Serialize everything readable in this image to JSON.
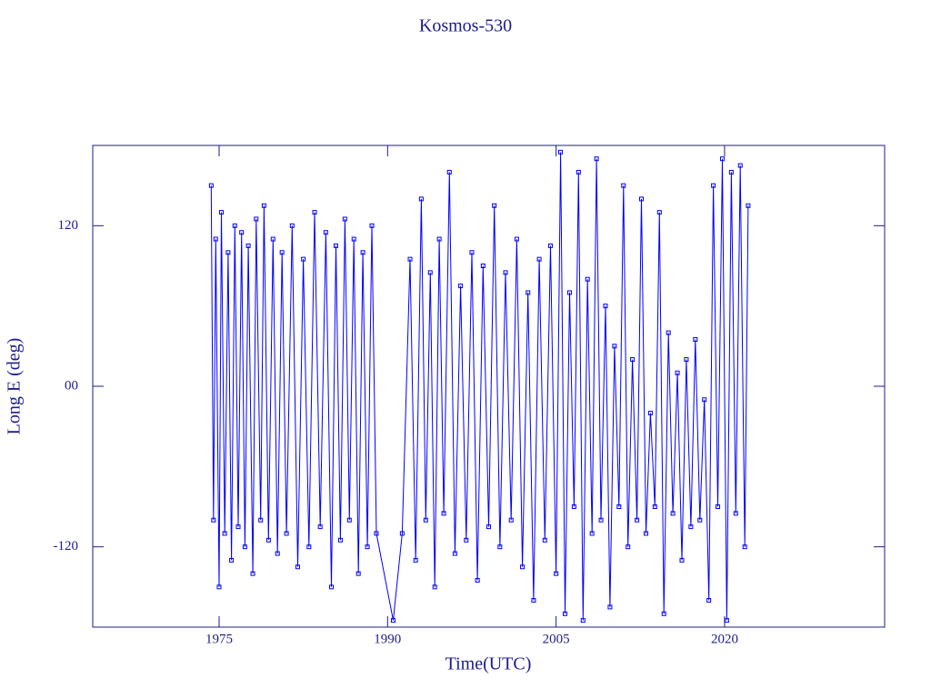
{
  "chart_data": {
    "type": "line",
    "title": "Kosmos-530",
    "x_label": "Time(UTC)",
    "y_label": "Long E (deg)",
    "xlim": [
      1963.75,
      2034.25
    ],
    "xticks": [
      1975,
      1990,
      2005,
      2020
    ],
    "ylim": [
      -180,
      180
    ],
    "yticks": [
      -120,
      {
        "value": 0,
        "label": "00"
      },
      120
    ],
    "series": [
      {
        "color": "#0000ff",
        "x": [
          1974.3,
          1974.5,
          1974.7,
          1975.0,
          1975.2,
          1975.5,
          1975.8,
          1976.1,
          1976.4,
          1976.7,
          1977.0,
          1977.3,
          1977.6,
          1978.0,
          1978.3,
          1978.7,
          1979.0,
          1979.4,
          1979.8,
          1980.2,
          1980.6,
          1981.0,
          1981.5,
          1982.0,
          1982.5,
          1983.0,
          1983.5,
          1984.0,
          1984.5,
          1985.0,
          1985.4,
          1985.8,
          1986.2,
          1986.6,
          1987.0,
          1987.4,
          1987.8,
          1988.2,
          1988.6,
          1989.0,
          1990.5,
          1991.3,
          1992.0,
          1992.5,
          1993.0,
          1993.4,
          1993.8,
          1994.2,
          1994.6,
          1995.0,
          1995.5,
          1996.0,
          1996.5,
          1997.0,
          1997.5,
          1998.0,
          1998.5,
          1999.0,
          1999.5,
          2000.0,
          2000.5,
          2001.0,
          2001.5,
          2002.0,
          2002.5,
          2003.0,
          2003.5,
          2004.0,
          2004.5,
          2005.0,
          2005.4,
          2005.8,
          2006.2,
          2006.6,
          2007.0,
          2007.4,
          2007.8,
          2008.2,
          2008.6,
          2009.0,
          2009.4,
          2009.8,
          2010.2,
          2010.6,
          2011.0,
          2011.4,
          2011.8,
          2012.2,
          2012.6,
          2013.0,
          2013.4,
          2013.8,
          2014.2,
          2014.6,
          2015.0,
          2015.4,
          2015.8,
          2016.2,
          2016.6,
          2017.0,
          2017.4,
          2017.8,
          2018.2,
          2018.6,
          2019.0,
          2019.4,
          2019.8,
          2020.2,
          2020.6,
          2021.0,
          2021.4,
          2021.8,
          2022.1
        ],
        "values": [
          150,
          -100,
          110,
          -150,
          130,
          -110,
          100,
          -130,
          120,
          -105,
          115,
          -120,
          105,
          -140,
          125,
          -100,
          135,
          -115,
          110,
          -125,
          100,
          -110,
          120,
          -135,
          95,
          -120,
          130,
          -105,
          115,
          -150,
          105,
          -115,
          125,
          -100,
          110,
          -140,
          100,
          -120,
          120,
          -110,
          -175,
          -110,
          95,
          -130,
          140,
          -100,
          85,
          -150,
          110,
          -95,
          160,
          -125,
          75,
          -115,
          100,
          -145,
          90,
          -105,
          135,
          -120,
          85,
          -100,
          110,
          -135,
          70,
          -160,
          95,
          -115,
          105,
          -140,
          175,
          -170,
          70,
          -90,
          160,
          -175,
          80,
          -110,
          170,
          -100,
          60,
          -165,
          30,
          -90,
          150,
          -120,
          20,
          -100,
          140,
          -110,
          -20,
          -90,
          130,
          -170,
          40,
          -95,
          10,
          -130,
          20,
          -105,
          35,
          -100,
          -10,
          -160,
          150,
          -90,
          170,
          -175,
          160,
          -95,
          165,
          -120,
          135
        ]
      }
    ]
  }
}
